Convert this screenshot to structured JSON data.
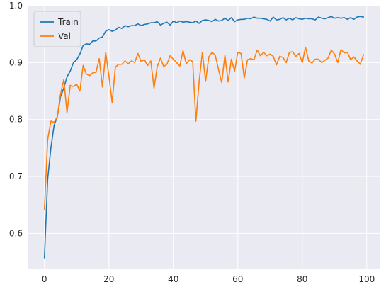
{
  "chart_data": {
    "type": "line",
    "x": [
      0,
      1,
      2,
      3,
      4,
      5,
      6,
      7,
      8,
      9,
      10,
      11,
      12,
      13,
      14,
      15,
      16,
      17,
      18,
      19,
      20,
      21,
      22,
      23,
      24,
      25,
      26,
      27,
      28,
      29,
      30,
      31,
      32,
      33,
      34,
      35,
      36,
      37,
      38,
      39,
      40,
      41,
      42,
      43,
      44,
      45,
      46,
      47,
      48,
      49,
      50,
      51,
      52,
      53,
      54,
      55,
      56,
      57,
      58,
      59,
      60,
      61,
      62,
      63,
      64,
      65,
      66,
      67,
      68,
      69,
      70,
      71,
      72,
      73,
      74,
      75,
      76,
      77,
      78,
      79,
      80,
      81,
      82,
      83,
      84,
      85,
      86,
      87,
      88,
      89,
      90,
      91,
      92,
      93,
      94,
      95,
      96,
      97,
      98,
      99
    ],
    "series": [
      {
        "name": "Train",
        "color": "#1f77b4",
        "values": [
          0.557,
          0.695,
          0.75,
          0.79,
          0.805,
          0.84,
          0.855,
          0.875,
          0.885,
          0.9,
          0.905,
          0.915,
          0.93,
          0.933,
          0.932,
          0.938,
          0.938,
          0.943,
          0.945,
          0.955,
          0.958,
          0.955,
          0.957,
          0.962,
          0.96,
          0.965,
          0.963,
          0.965,
          0.965,
          0.968,
          0.965,
          0.967,
          0.968,
          0.97,
          0.97,
          0.972,
          0.966,
          0.969,
          0.971,
          0.966,
          0.973,
          0.97,
          0.973,
          0.971,
          0.972,
          0.971,
          0.97,
          0.973,
          0.969,
          0.974,
          0.975,
          0.974,
          0.972,
          0.976,
          0.973,
          0.974,
          0.978,
          0.974,
          0.979,
          0.972,
          0.975,
          0.976,
          0.976,
          0.978,
          0.977,
          0.98,
          0.978,
          0.978,
          0.977,
          0.976,
          0.973,
          0.98,
          0.975,
          0.976,
          0.979,
          0.975,
          0.978,
          0.975,
          0.979,
          0.977,
          0.976,
          0.978,
          0.977,
          0.977,
          0.975,
          0.98,
          0.978,
          0.977,
          0.979,
          0.981,
          0.978,
          0.979,
          0.978,
          0.979,
          0.976,
          0.979,
          0.976,
          0.98,
          0.981,
          0.98
        ]
      },
      {
        "name": "Val",
        "color": "#ff7f0e",
        "values": [
          0.642,
          0.765,
          0.797,
          0.795,
          0.805,
          0.845,
          0.87,
          0.812,
          0.86,
          0.858,
          0.862,
          0.85,
          0.895,
          0.88,
          0.877,
          0.882,
          0.883,
          0.907,
          0.857,
          0.918,
          0.877,
          0.83,
          0.892,
          0.897,
          0.897,
          0.903,
          0.898,
          0.903,
          0.9,
          0.916,
          0.902,
          0.905,
          0.895,
          0.903,
          0.855,
          0.893,
          0.908,
          0.893,
          0.897,
          0.912,
          0.906,
          0.9,
          0.894,
          0.921,
          0.898,
          0.905,
          0.902,
          0.797,
          0.867,
          0.918,
          0.867,
          0.91,
          0.918,
          0.913,
          0.888,
          0.865,
          0.913,
          0.866,
          0.906,
          0.885,
          0.918,
          0.916,
          0.873,
          0.905,
          0.907,
          0.905,
          0.922,
          0.912,
          0.918,
          0.912,
          0.915,
          0.911,
          0.896,
          0.911,
          0.909,
          0.9,
          0.918,
          0.919,
          0.911,
          0.916,
          0.9,
          0.927,
          0.903,
          0.899,
          0.906,
          0.906,
          0.9,
          0.904,
          0.908,
          0.922,
          0.915,
          0.9,
          0.923,
          0.917,
          0.918,
          0.905,
          0.91,
          0.903,
          0.897,
          0.914
        ]
      }
    ],
    "title": "",
    "xlabel": "",
    "ylabel": "",
    "xlim": [
      -5,
      104
    ],
    "ylim": [
      0.537,
      1.0
    ],
    "xticks": [
      0,
      20,
      40,
      60,
      80,
      100
    ],
    "xtick_labels": [
      "0",
      "20",
      "40",
      "60",
      "80",
      "100"
    ],
    "yticks": [
      0.6,
      0.7,
      0.8,
      0.9,
      1.0
    ],
    "ytick_labels": [
      "0.6",
      "0.7",
      "0.8",
      "0.9",
      "1.0"
    ],
    "grid": true,
    "legend_position": "top-left",
    "style": {
      "plot_background": "#eaeaf2",
      "grid_color": "#ffffff",
      "text_color": "#262626",
      "legend_background": "#eaeaf2",
      "legend_border": "#cccccc"
    }
  }
}
